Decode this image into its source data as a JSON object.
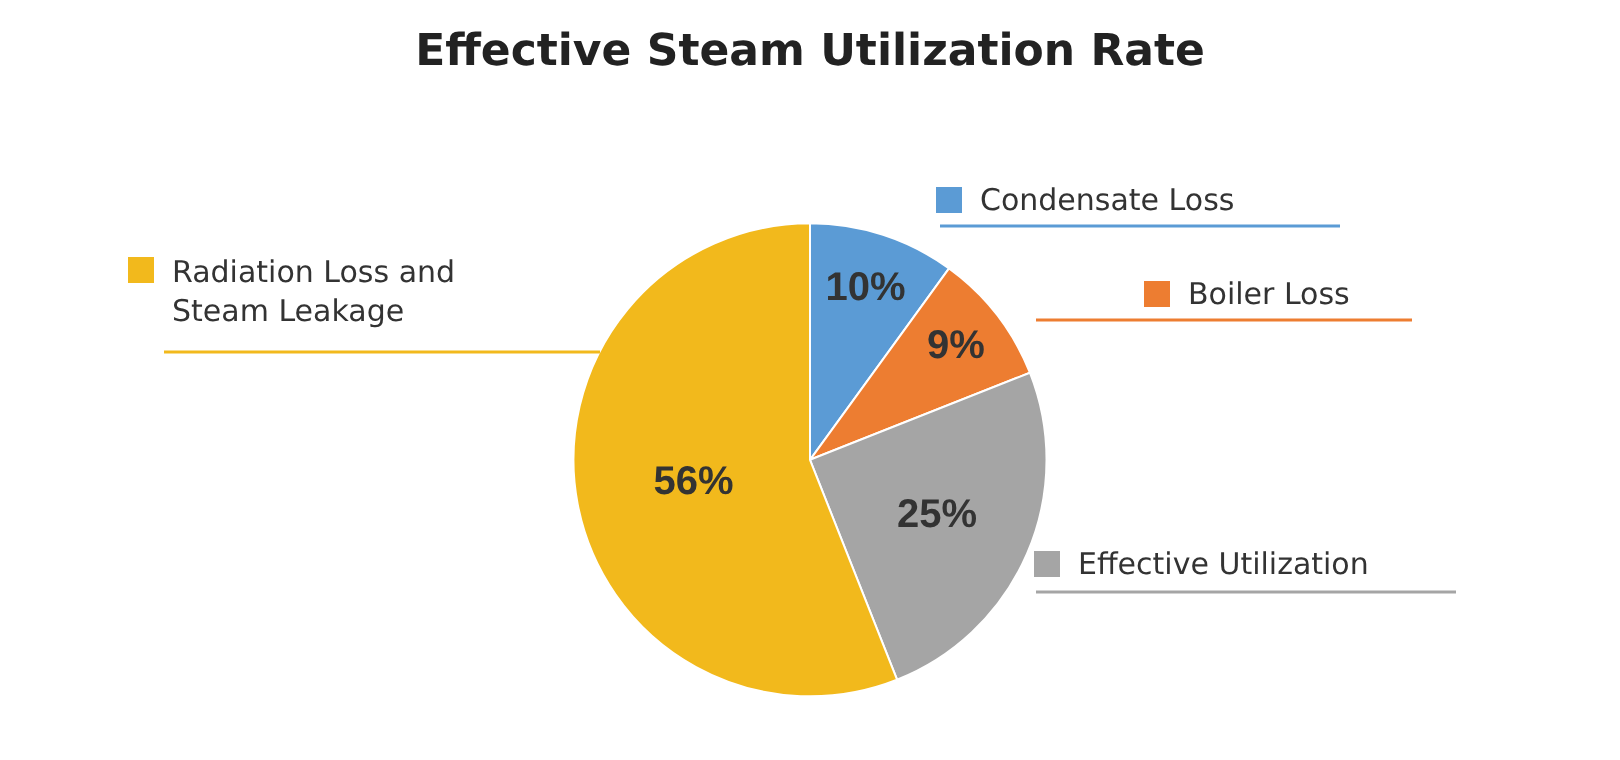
{
  "chart_data": {
    "type": "pie",
    "title": "Effective Steam Utilization Rate",
    "categories": [
      "Condensate Loss",
      "Boiler Loss",
      "Effective Utilization",
      "Radiation Loss and Steam Leakage"
    ],
    "values": [
      10,
      9,
      25,
      56
    ],
    "colors": [
      "#5b9bd5",
      "#ed7d31",
      "#a5a5a5",
      "#f2b91c"
    ],
    "value_labels": [
      "10%",
      "9%",
      "25%",
      "56%"
    ],
    "legend": "top left"
  }
}
